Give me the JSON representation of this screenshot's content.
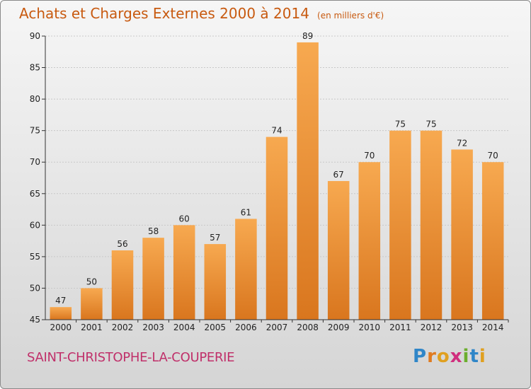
{
  "chart_data": {
    "type": "bar",
    "title": "Achats et Charges Externes 2000 à 2014",
    "subtitle": "(en milliers d'€)",
    "categories": [
      "2000",
      "2001",
      "2002",
      "2003",
      "2004",
      "2005",
      "2006",
      "2007",
      "2008",
      "2009",
      "2010",
      "2011",
      "2012",
      "2013",
      "2014"
    ],
    "values": [
      47,
      50,
      56,
      58,
      60,
      57,
      61,
      74,
      89,
      67,
      70,
      75,
      75,
      72,
      70
    ],
    "ylim": [
      45,
      90
    ],
    "yticks": [
      45,
      50,
      55,
      60,
      65,
      70,
      75,
      80,
      85,
      90
    ],
    "grid": true,
    "xlabel": "",
    "ylabel": "",
    "bar_color": "#f0903a",
    "bar_color_light": "#f7a950",
    "bar_color_dark": "#d9761e"
  },
  "footer": {
    "commune": "SAINT-CHRISTOPHE-LA-COUPERIE",
    "brand": {
      "letters": [
        "P",
        "r",
        "o",
        "x",
        "i",
        "t",
        "i"
      ],
      "colors": [
        "#2f86c8",
        "#e07b20",
        "#e0a020",
        "#d02f7e",
        "#6cae2e",
        "#2f86c8",
        "#e0a020"
      ]
    }
  }
}
